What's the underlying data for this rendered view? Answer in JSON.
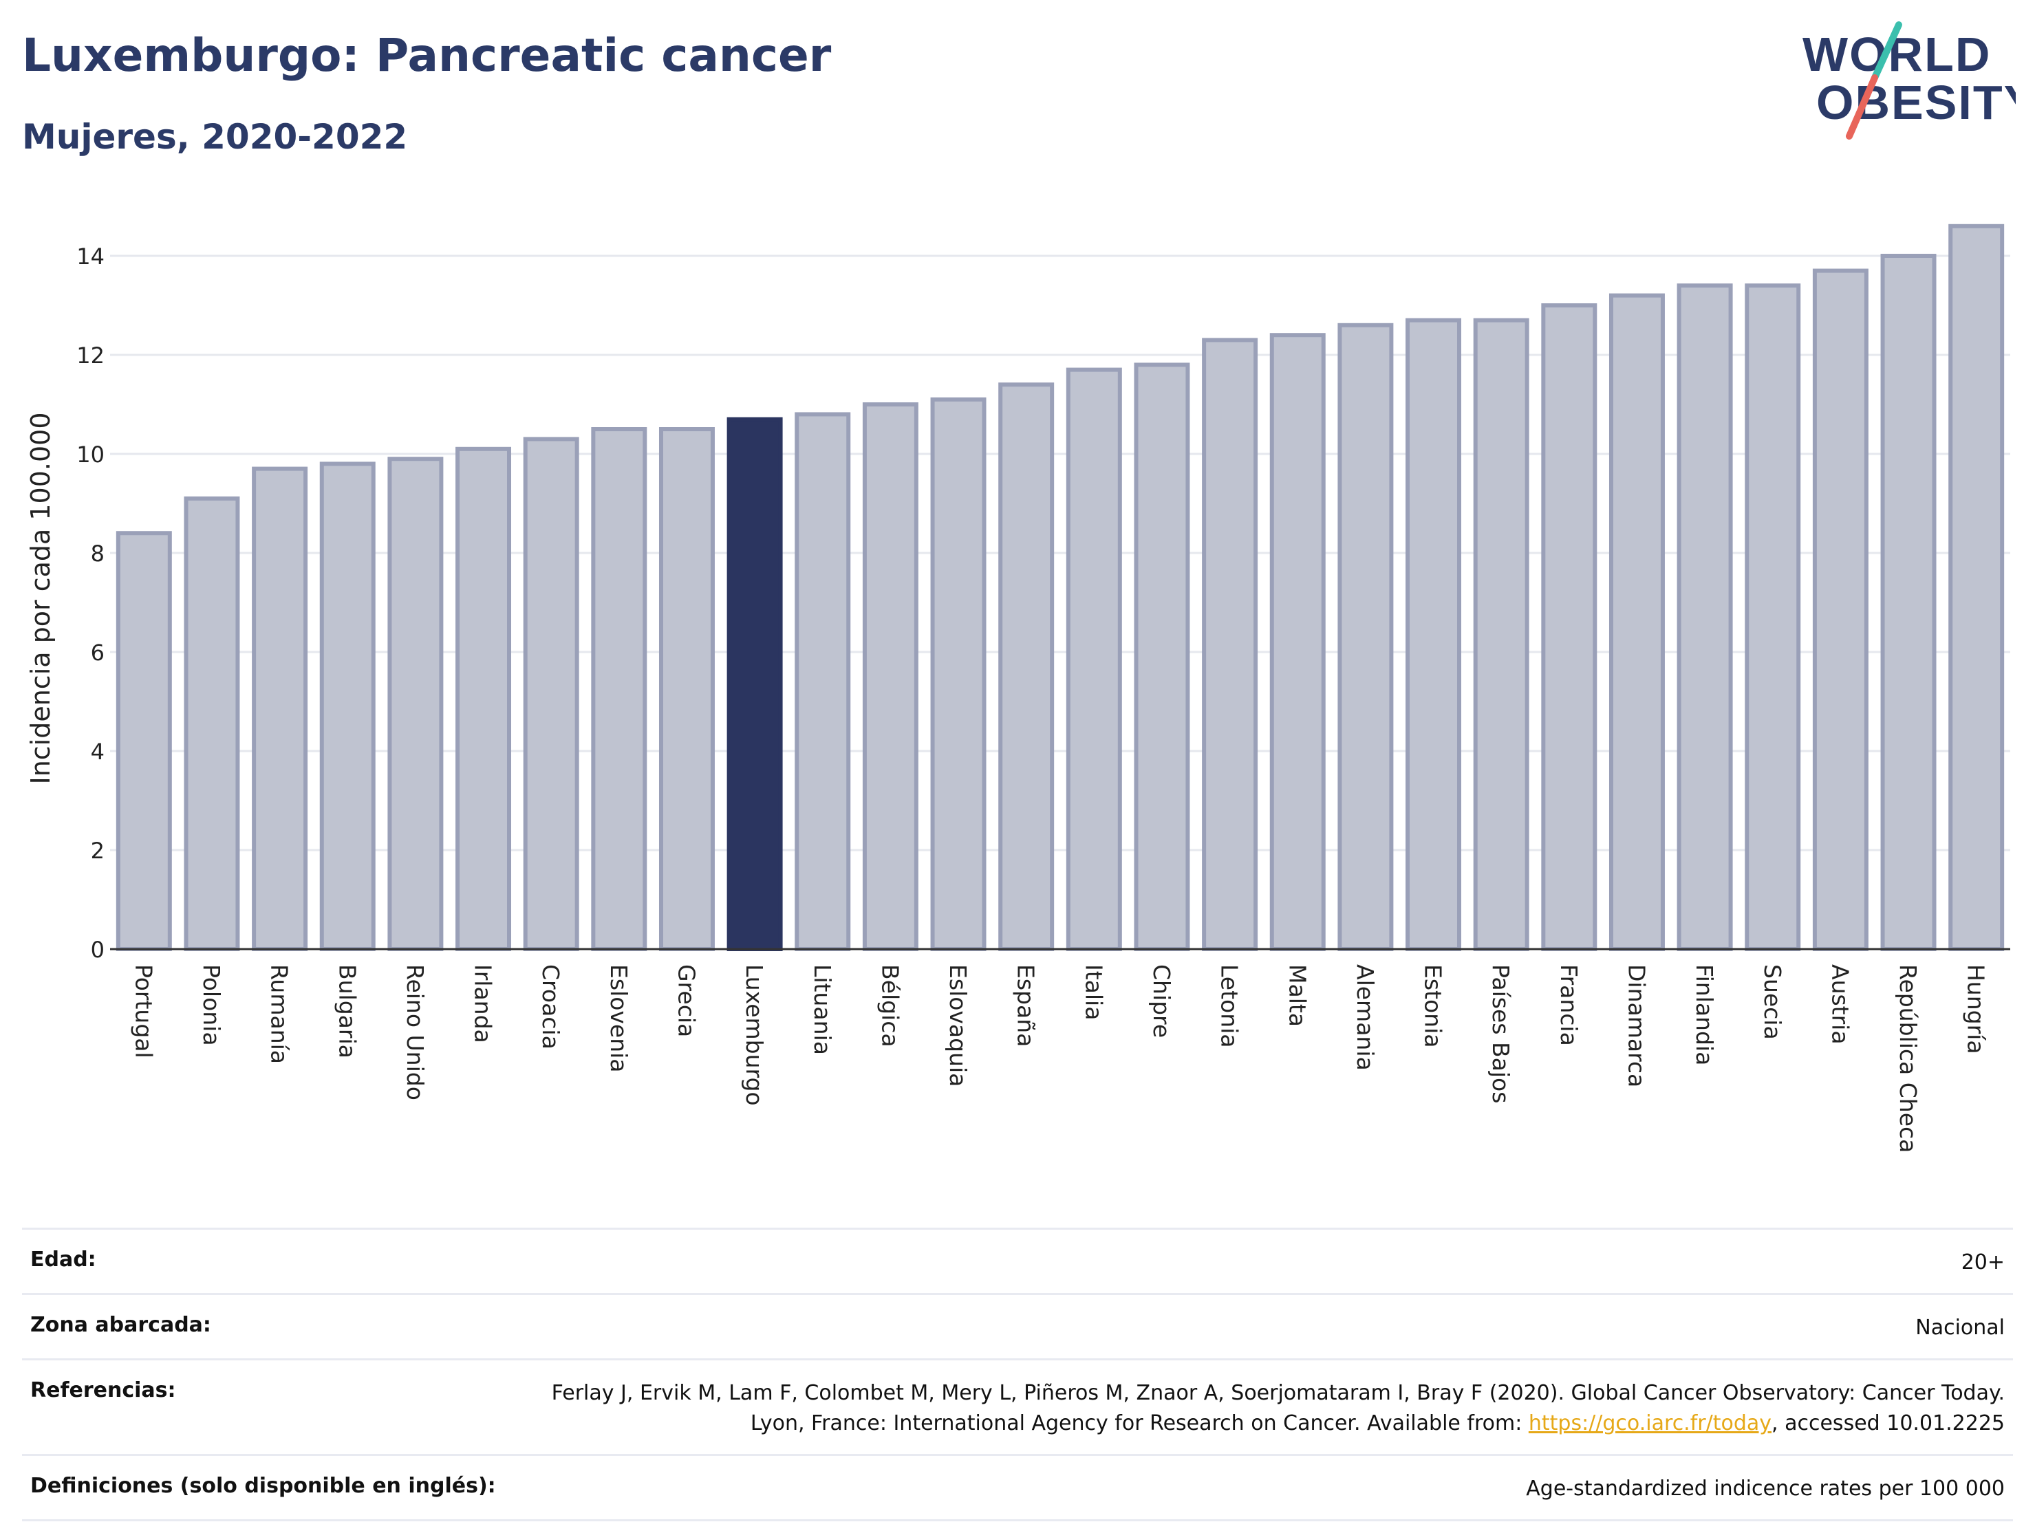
{
  "header": {
    "title": "Luxemburgo: Pancreatic cancer",
    "subtitle": "Mujeres, 2020-2022"
  },
  "logo": {
    "line1": "WORLD",
    "line2": "OBESITY",
    "colors": {
      "text": "#2b3a67",
      "slash_top": "#3bbfad",
      "slash_bottom": "#e8655a"
    }
  },
  "chart_data": {
    "type": "bar",
    "ylabel": "Incidencia por cada 100.000",
    "ylim": [
      0,
      15
    ],
    "yticks": [
      0,
      2,
      4,
      6,
      8,
      10,
      12,
      14
    ],
    "grid": true,
    "highlight": "Luxemburgo",
    "colors": {
      "bar": "#bfc3d0",
      "bar_edge": "#9aa0b8",
      "highlight": "#2b3560"
    },
    "categories": [
      "Portugal",
      "Polonia",
      "Rumanía",
      "Bulgaria",
      "Reino Unido",
      "Irlanda",
      "Croacia",
      "Eslovenia",
      "Grecia",
      "Luxemburgo",
      "Lituania",
      "Bélgica",
      "Eslovaquia",
      "España",
      "Italia",
      "Chipre",
      "Letonia",
      "Malta",
      "Alemania",
      "Estonia",
      "Países Bajos",
      "Francia",
      "Dinamarca",
      "Finlandia",
      "Suecia",
      "Austria",
      "República Checa",
      "Hungría"
    ],
    "values": [
      8.4,
      9.1,
      9.7,
      9.8,
      9.9,
      10.1,
      10.3,
      10.5,
      10.5,
      10.7,
      10.8,
      11.0,
      11.1,
      11.4,
      11.7,
      11.8,
      12.3,
      12.4,
      12.6,
      12.7,
      12.7,
      13.0,
      13.2,
      13.4,
      13.4,
      13.7,
      14.0,
      14.6
    ]
  },
  "info": {
    "rows": [
      {
        "label": "Edad:",
        "value": "20+"
      },
      {
        "label": "Zona abarcada:",
        "value": "Nacional"
      },
      {
        "label": "Referencias:",
        "value_pre": "Ferlay J, Ervik M, Lam F, Colombet M, Mery L, Piñeros M, Znaor A, Soerjomataram I, Bray F (2020). Global Cancer Observatory: Cancer Today. Lyon, France: International Agency for Research on Cancer. Available from: ",
        "link": "https://gco.iarc.fr/today",
        "value_post": ", accessed 10.01.2225"
      },
      {
        "label": "Definiciones (solo disponible en inglés):",
        "value": "Age-standardized indicence rates per 100 000"
      }
    ]
  }
}
